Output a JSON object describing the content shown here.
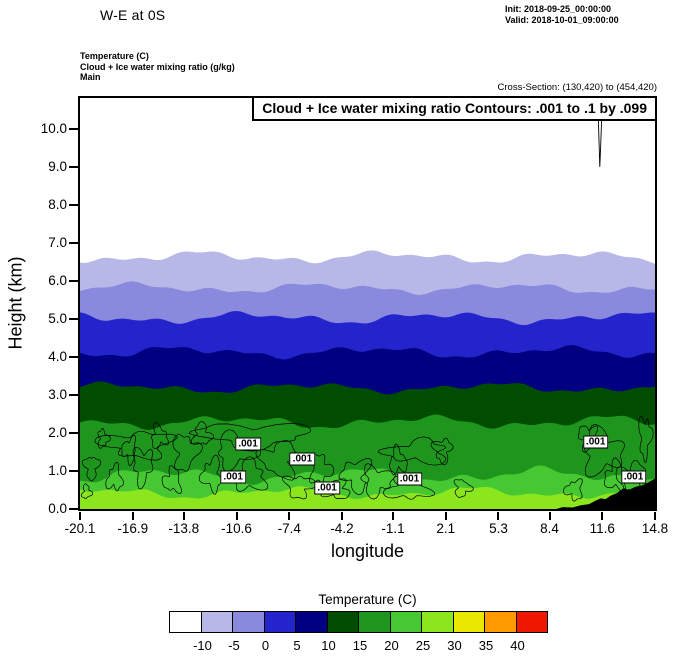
{
  "header": {
    "title": "W-E at 0S",
    "init": "Init: 2018-09-25_00:00:00",
    "valid": "Valid: 2018-10-01_09:00:00"
  },
  "subheader": {
    "line1": "Temperature  (C)",
    "line2": "Cloud + Ice water mixing ratio  (g/kg)",
    "line3": "Main",
    "cross_section": "Cross-Section: (130,420) to (454,420)"
  },
  "chart_data": {
    "type": "filled-contour-cross-section",
    "title": "Cloud + Ice water mixing ratio Contours: .001 to .1 by .099",
    "xlabel": "longitude",
    "ylabel": "Height (km)",
    "xlim": [
      -20.1,
      14.8
    ],
    "ylim": [
      0,
      10.81
    ],
    "x_ticks": [
      -20.1,
      -16.9,
      -13.8,
      -10.6,
      -7.4,
      -4.2,
      -1.1,
      2.1,
      5.3,
      8.4,
      11.6,
      14.8
    ],
    "x_tick_labels": [
      "-20.1",
      "-16.9",
      "-13.8",
      "-10.6",
      "-7.4",
      "-4.2",
      "-1.1",
      "2.1",
      "5.3",
      "8.4",
      "11.6",
      "14.8"
    ],
    "y_ticks": [
      0,
      1,
      2,
      3,
      4,
      5,
      6,
      7,
      8,
      9,
      10
    ],
    "y_tick_labels": [
      "0.0",
      "1.0",
      "2.0",
      "3.0",
      "4.0",
      "5.0",
      "6.0",
      "7.0",
      "8.0",
      "9.0",
      "10.0"
    ],
    "temperature_field": {
      "units": "C",
      "band_boundaries_km": [
        6.62,
        5.8,
        5.02,
        4.12,
        3.18,
        2.28,
        0.88,
        0.42
      ],
      "band_wave_amp_km": [
        0.1,
        0.09,
        0.1,
        0.1,
        0.09,
        0.11,
        0.13,
        0.1
      ],
      "band_colors": [
        "#ffffff",
        "#b8b8e8",
        "#8989dd",
        "#2424cc",
        "#000080",
        "#004d00",
        "#1e961e",
        "#46c832",
        "#8ce61e"
      ],
      "band_temperatures_c": [
        "below -10",
        "-10 to -5",
        "-5 to 0",
        "0 to 5",
        "5 to 10",
        "10 to 15",
        "15 to 20",
        "20 to 25",
        "25 to 30"
      ]
    },
    "cloud_contours": {
      "field": "Cloud + Ice water mixing ratio (g/kg)",
      "levels": [
        0.001,
        0.1
      ],
      "label_text": ".001",
      "labels": [
        {
          "lon": -9.9,
          "km": 1.7
        },
        {
          "lon": -6.6,
          "km": 1.32
        },
        {
          "lon": -10.8,
          "km": 0.85
        },
        {
          "lon": -5.1,
          "km": 0.55
        },
        {
          "lon": -0.1,
          "km": 0.8
        },
        {
          "lon": 11.2,
          "km": 1.75
        },
        {
          "lon": 13.5,
          "km": 0.85
        }
      ],
      "blobs": [
        [
          -19.4,
          1.1,
          0.4,
          0.3
        ],
        [
          -18.7,
          1.85,
          0.3,
          0.22
        ],
        [
          -18.0,
          0.8,
          0.45,
          0.3
        ],
        [
          -17.1,
          1.55,
          0.4,
          0.3
        ],
        [
          -16.3,
          1.15,
          0.55,
          0.45
        ],
        [
          -15.3,
          1.9,
          0.45,
          0.28
        ],
        [
          -14.5,
          0.75,
          0.5,
          0.3
        ],
        [
          -16.6,
          1.7,
          2.0,
          0.32
        ],
        [
          -13.7,
          1.5,
          0.7,
          0.45
        ],
        [
          -12.7,
          1.95,
          0.5,
          0.28
        ],
        [
          -12.1,
          0.9,
          0.55,
          0.4
        ],
        [
          -9.6,
          1.95,
          3.3,
          0.28
        ],
        [
          -10.6,
          1.55,
          1.2,
          0.4
        ],
        [
          -9.8,
          0.85,
          0.9,
          0.38
        ],
        [
          -8.0,
          1.3,
          1.0,
          0.45
        ],
        [
          -6.8,
          0.6,
          0.8,
          0.28
        ],
        [
          -5.5,
          1.05,
          0.6,
          0.35
        ],
        [
          -4.5,
          0.5,
          0.7,
          0.24
        ],
        [
          -3.3,
          0.9,
          0.8,
          0.4
        ],
        [
          -2.1,
          0.75,
          0.9,
          0.35
        ],
        [
          -0.8,
          1.25,
          0.5,
          0.3
        ],
        [
          0.4,
          1.5,
          1.8,
          0.28
        ],
        [
          1.9,
          1.55,
          0.5,
          0.3
        ],
        [
          3.1,
          0.55,
          0.45,
          0.22
        ],
        [
          -0.2,
          0.55,
          1.2,
          0.3
        ],
        [
          9.9,
          0.5,
          0.5,
          0.24
        ],
        [
          10.7,
          1.9,
          0.5,
          0.3
        ],
        [
          11.6,
          1.5,
          1.1,
          0.55
        ],
        [
          12.4,
          0.85,
          0.6,
          0.35
        ],
        [
          13.4,
          0.8,
          0.8,
          0.4
        ],
        [
          14.2,
          1.9,
          0.35,
          0.5
        ],
        [
          -19.7,
          0.45,
          0.25,
          0.18
        ]
      ],
      "streak": {
        "lon": 11.45,
        "top_km": 10.81,
        "bottom_km": 9.0
      }
    },
    "terrain": {
      "color": "#000000",
      "profile_lon_km": [
        [
          8.8,
          0.0
        ],
        [
          9.2,
          0.05
        ],
        [
          9.8,
          0.04
        ],
        [
          10.3,
          0.1
        ],
        [
          10.8,
          0.13
        ],
        [
          11.2,
          0.22
        ],
        [
          11.5,
          0.28
        ],
        [
          11.8,
          0.26
        ],
        [
          12.1,
          0.35
        ],
        [
          12.5,
          0.42
        ],
        [
          12.9,
          0.55
        ],
        [
          13.2,
          0.5
        ],
        [
          13.6,
          0.58
        ],
        [
          14.0,
          0.62
        ],
        [
          14.4,
          0.7
        ],
        [
          14.8,
          0.8
        ]
      ]
    },
    "colorbar": {
      "title": "Temperature  (C)",
      "colors": [
        "#ffffff",
        "#b8b8e8",
        "#8989dd",
        "#2424cc",
        "#000080",
        "#004d00",
        "#1e961e",
        "#46c832",
        "#8ce61e",
        "#e8e800",
        "#ff9900",
        "#f01800"
      ],
      "tick_labels": [
        "-10",
        "-5",
        "0",
        "5",
        "10",
        "15",
        "20",
        "25",
        "30",
        "35",
        "40"
      ]
    }
  }
}
